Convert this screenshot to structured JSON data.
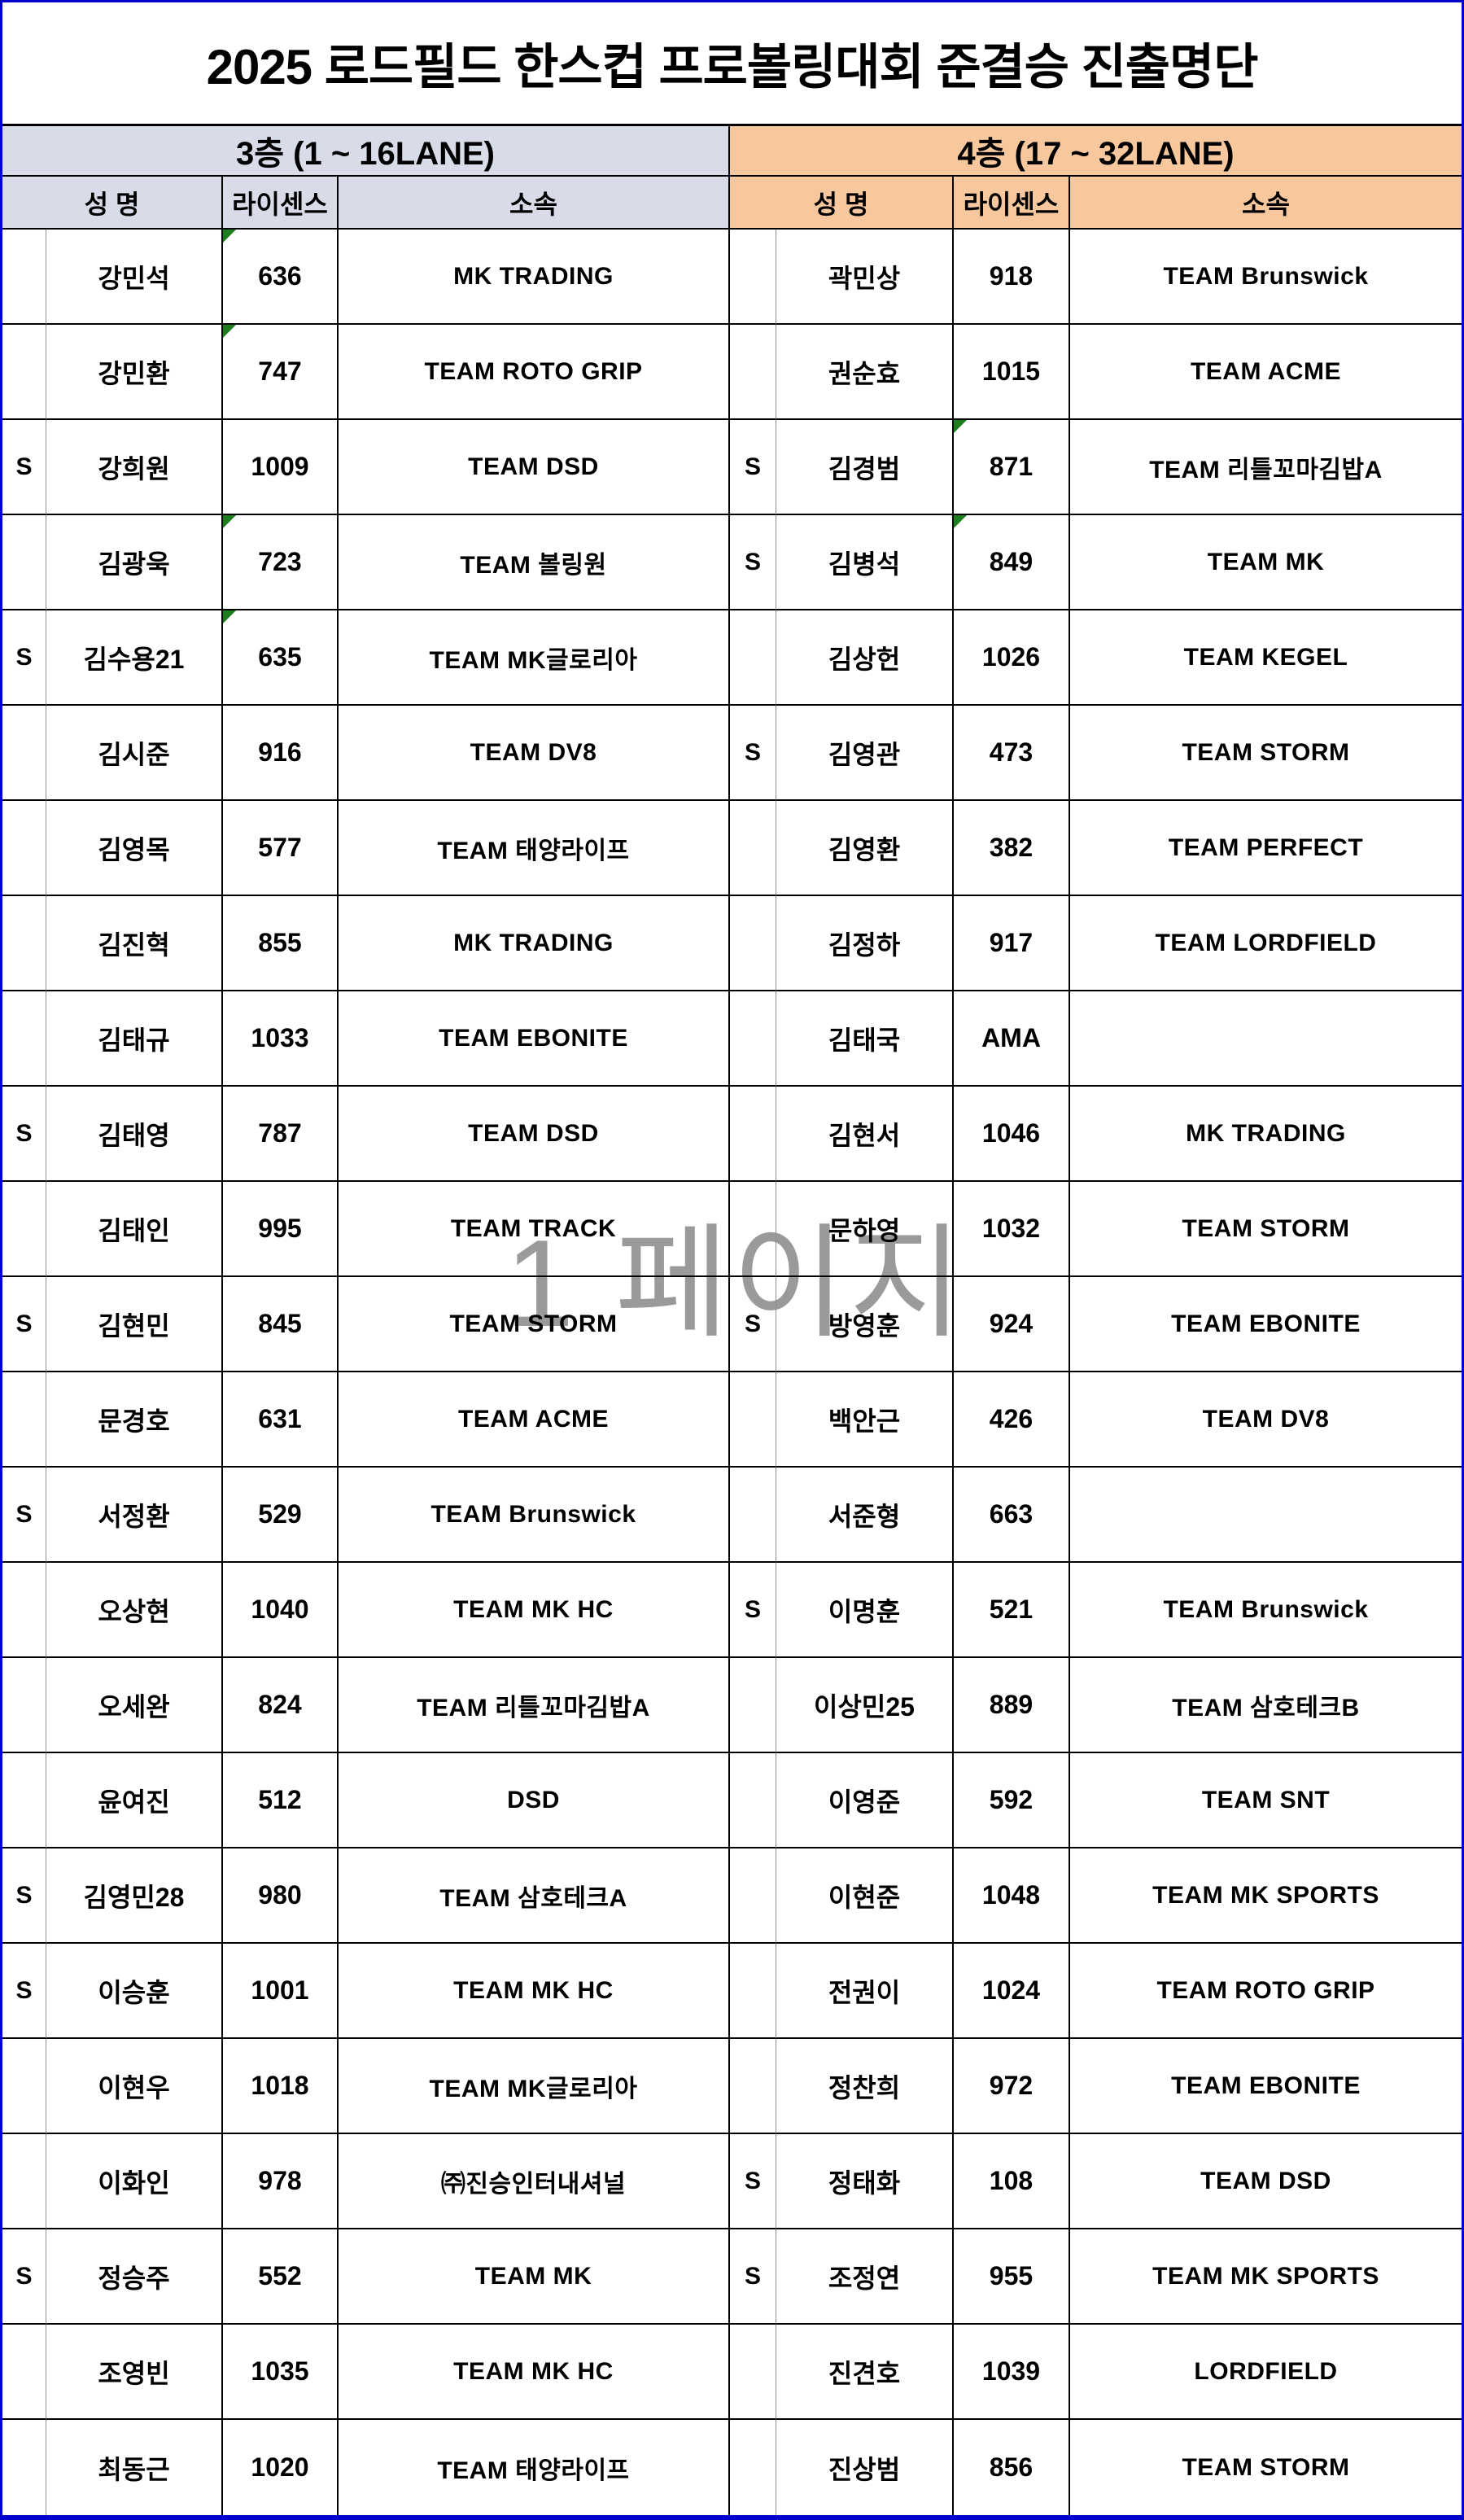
{
  "page": {
    "title": "2025 로드필드 한스컵 프로볼링대회 준결승 진출명단",
    "watermark": "1 페이지"
  },
  "colors": {
    "left_section_bg": "#d8dce9",
    "right_section_bg": "#f7c79d",
    "page_border_blue": "#0000cd",
    "grid_border_black": "#000000",
    "marker_green": "#1e7e1e",
    "watermark_gray": "#9a9a9a"
  },
  "columns": {
    "name_header": "성  명",
    "license_header": "라이센스",
    "team_header": "소속"
  },
  "sections": [
    {
      "floor_label": "3층 (1 ~ 16LANE)",
      "rows": [
        {
          "s": "",
          "name": "강민석",
          "license": "636",
          "team": "MK TRADING",
          "marker": true
        },
        {
          "s": "",
          "name": "강민환",
          "license": "747",
          "team": "TEAM ROTO GRIP",
          "marker": true
        },
        {
          "s": "S",
          "name": "강희원",
          "license": "1009",
          "team": "TEAM DSD",
          "marker": false
        },
        {
          "s": "",
          "name": "김광욱",
          "license": "723",
          "team": "TEAM 볼링원",
          "marker": true
        },
        {
          "s": "S",
          "name": "김수용21",
          "license": "635",
          "team": "TEAM MK글로리아",
          "marker": true
        },
        {
          "s": "",
          "name": "김시준",
          "license": "916",
          "team": "TEAM DV8",
          "marker": false
        },
        {
          "s": "",
          "name": "김영목",
          "license": "577",
          "team": "TEAM 태양라이프",
          "marker": false
        },
        {
          "s": "",
          "name": "김진혁",
          "license": "855",
          "team": "MK TRADING",
          "marker": false
        },
        {
          "s": "",
          "name": "김태규",
          "license": "1033",
          "team": "TEAM EBONITE",
          "marker": false
        },
        {
          "s": "S",
          "name": "김태영",
          "license": "787",
          "team": "TEAM DSD",
          "marker": false
        },
        {
          "s": "",
          "name": "김태인",
          "license": "995",
          "team": "TEAM TRACK",
          "marker": false
        },
        {
          "s": "S",
          "name": "김현민",
          "license": "845",
          "team": "TEAM STORM",
          "marker": false
        },
        {
          "s": "",
          "name": "문경호",
          "license": "631",
          "team": "TEAM ACME",
          "marker": false
        },
        {
          "s": "S",
          "name": "서정환",
          "license": "529",
          "team": "TEAM Brunswick",
          "marker": false
        },
        {
          "s": "",
          "name": "오상현",
          "license": "1040",
          "team": "TEAM MK HC",
          "marker": false
        },
        {
          "s": "",
          "name": "오세완",
          "license": "824",
          "team": "TEAM 리틀꼬마김밥A",
          "marker": false
        },
        {
          "s": "",
          "name": "윤여진",
          "license": "512",
          "team": "DSD",
          "marker": false
        },
        {
          "s": "S",
          "name": "김영민28",
          "license": "980",
          "team": "TEAM 삼호테크A",
          "marker": false
        },
        {
          "s": "S",
          "name": "이승훈",
          "license": "1001",
          "team": "TEAM MK HC",
          "marker": false
        },
        {
          "s": "",
          "name": "이현우",
          "license": "1018",
          "team": "TEAM MK글로리아",
          "marker": false
        },
        {
          "s": "",
          "name": "이화인",
          "license": "978",
          "team": "㈜진승인터내셔널",
          "marker": false
        },
        {
          "s": "S",
          "name": "정승주",
          "license": "552",
          "team": "TEAM MK",
          "marker": false
        },
        {
          "s": "",
          "name": "조영빈",
          "license": "1035",
          "team": "TEAM MK HC",
          "marker": false
        },
        {
          "s": "",
          "name": "최동근",
          "license": "1020",
          "team": "TEAM 태양라이프",
          "marker": false
        }
      ]
    },
    {
      "floor_label": "4층 (17 ~ 32LANE)",
      "rows": [
        {
          "s": "",
          "name": "곽민상",
          "license": "918",
          "team": "TEAM Brunswick",
          "marker": false
        },
        {
          "s": "",
          "name": "권순효",
          "license": "1015",
          "team": "TEAM ACME",
          "marker": false
        },
        {
          "s": "S",
          "name": "김경범",
          "license": "871",
          "team": "TEAM 리틀꼬마김밥A",
          "marker": true
        },
        {
          "s": "S",
          "name": "김병석",
          "license": "849",
          "team": "TEAM MK",
          "marker": true
        },
        {
          "s": "",
          "name": "김상헌",
          "license": "1026",
          "team": "TEAM KEGEL",
          "marker": false
        },
        {
          "s": "S",
          "name": "김영관",
          "license": "473",
          "team": "TEAM STORM",
          "marker": false
        },
        {
          "s": "",
          "name": "김영환",
          "license": "382",
          "team": "TEAM PERFECT",
          "marker": false
        },
        {
          "s": "",
          "name": "김정하",
          "license": "917",
          "team": "TEAM LORDFIELD",
          "marker": false
        },
        {
          "s": "",
          "name": "김태국",
          "license": "AMA",
          "team": "",
          "marker": false
        },
        {
          "s": "",
          "name": "김현서",
          "license": "1046",
          "team": "MK TRADING",
          "marker": false
        },
        {
          "s": "",
          "name": "문하영",
          "license": "1032",
          "team": "TEAM STORM",
          "marker": false
        },
        {
          "s": "S",
          "name": "방영훈",
          "license": "924",
          "team": "TEAM EBONITE",
          "marker": false
        },
        {
          "s": "",
          "name": "백안근",
          "license": "426",
          "team": "TEAM DV8",
          "marker": false
        },
        {
          "s": "",
          "name": "서준형",
          "license": "663",
          "team": "",
          "marker": false
        },
        {
          "s": "S",
          "name": "이명훈",
          "license": "521",
          "team": "TEAM Brunswick",
          "marker": false
        },
        {
          "s": "",
          "name": "이상민25",
          "license": "889",
          "team": "TEAM 삼호테크B",
          "marker": false
        },
        {
          "s": "",
          "name": "이영준",
          "license": "592",
          "team": "TEAM SNT",
          "marker": false
        },
        {
          "s": "",
          "name": "이현준",
          "license": "1048",
          "team": "TEAM MK SPORTS",
          "marker": false
        },
        {
          "s": "",
          "name": "전권이",
          "license": "1024",
          "team": "TEAM ROTO GRIP",
          "marker": false
        },
        {
          "s": "",
          "name": "정찬희",
          "license": "972",
          "team": "TEAM EBONITE",
          "marker": false
        },
        {
          "s": "S",
          "name": "정태화",
          "license": "108",
          "team": "TEAM DSD",
          "marker": false
        },
        {
          "s": "S",
          "name": "조정연",
          "license": "955",
          "team": "TEAM MK SPORTS",
          "marker": false
        },
        {
          "s": "",
          "name": "진견호",
          "license": "1039",
          "team": "LORDFIELD",
          "marker": false
        },
        {
          "s": "",
          "name": "진상범",
          "license": "856",
          "team": "TEAM STORM",
          "marker": false
        }
      ]
    }
  ]
}
